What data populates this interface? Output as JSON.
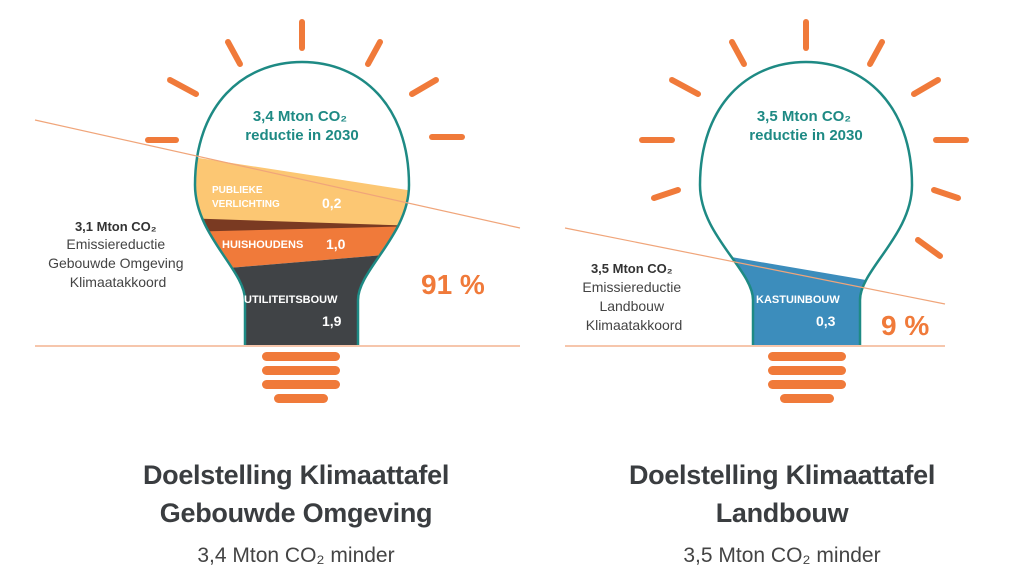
{
  "left": {
    "bulb_top_label": [
      "3,4 Mton CO₂",
      "reductie in 2030"
    ],
    "segments": [
      {
        "label": [
          "PUBLIEKE",
          "VERLICHTING"
        ],
        "value": "0,2"
      },
      {
        "label": [
          "HUISHOUDENS"
        ],
        "value": "1,0"
      },
      {
        "label": [
          "UTILITEITSBOUW"
        ],
        "value": "1,9"
      }
    ],
    "side_label_bold": "3,1 Mton CO₂",
    "side_label_lines": [
      "Emissiereductie",
      "Gebouwde Omgeving",
      "Klimaatakkoord"
    ],
    "percentage": "91 %",
    "title_line1": "Doelstelling  Klimaattafel",
    "title_line2": "Gebouwde Omgeving",
    "subtitle": "3,4 Mton CO₂ minder"
  },
  "right": {
    "bulb_top_label": [
      "3,5 Mton CO₂",
      "reductie in 2030"
    ],
    "segments": [
      {
        "label": [
          "KASTUINBOUW"
        ],
        "value": "0,3"
      }
    ],
    "side_label_bold": "3,5 Mton CO₂",
    "side_label_lines": [
      "Emissiereductie",
      "Landbouw",
      "Klimaatakkoord"
    ],
    "percentage": "9 %",
    "title_line1": "Doelstelling Klimaattafel",
    "title_line2": "Landbouw",
    "subtitle": "3,5 Mton CO₂ minder"
  },
  "colors": {
    "orange": "#f07a3a",
    "light_orange": "#fcc773",
    "dark_grey": "#404346",
    "teal": "#1e8a84",
    "blue": "#3c8dbc"
  }
}
